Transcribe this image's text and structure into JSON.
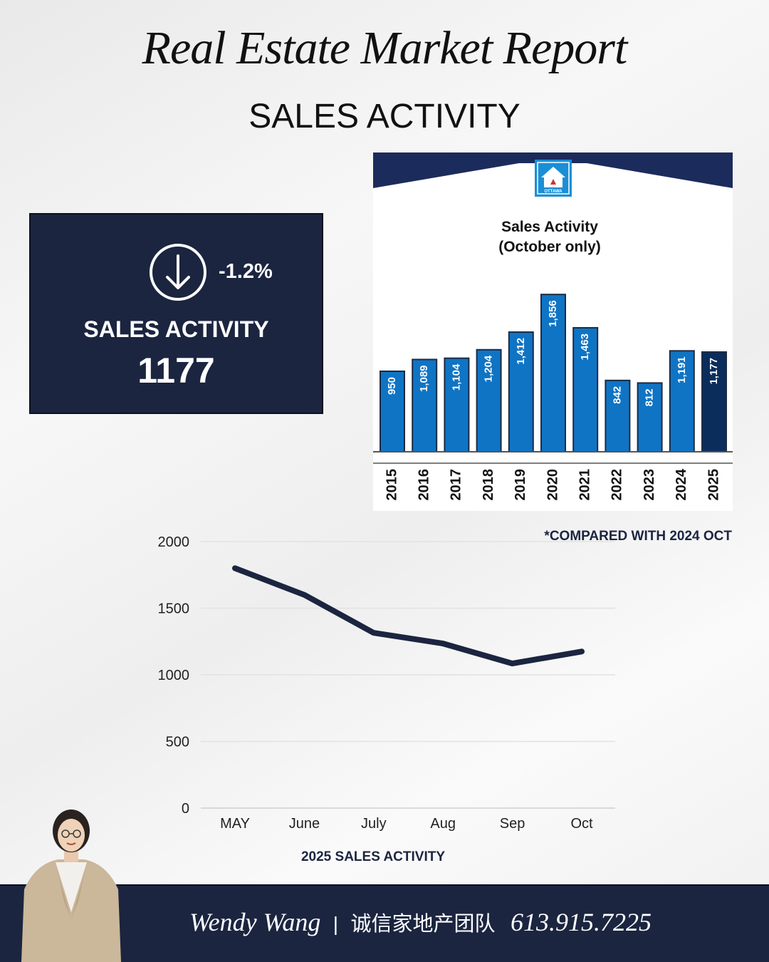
{
  "header": {
    "title": "Real Estate Market Report",
    "subtitle": "SALES ACTIVITY"
  },
  "kpi": {
    "direction_icon": "arrow-down-circle-icon",
    "change": "-1.2%",
    "label": "SALES ACTIVITY",
    "value": "1177"
  },
  "note": "*COMPARED WITH 2024 OCT",
  "footer": {
    "name": "Wendy Wang",
    "separator": "|",
    "team": "诚信家地产团队",
    "phone": "613.915.7225"
  },
  "colors": {
    "navy": "#1b2540",
    "bar_blue": "#0f74c4",
    "bar_highlight": "#0a2d5c",
    "logo_blue": "#1a8fd6"
  },
  "chart_data": [
    {
      "type": "bar",
      "title": "Sales Activity",
      "subtitle": "(October only)",
      "categories": [
        "2015",
        "2016",
        "2017",
        "2018",
        "2019",
        "2020",
        "2021",
        "2022",
        "2023",
        "2024",
        "2025"
      ],
      "values": [
        950,
        1089,
        1104,
        1204,
        1412,
        1856,
        1463,
        842,
        812,
        1191,
        1177
      ],
      "value_labels": [
        "950",
        "1,089",
        "1,104",
        "1,204",
        "1,412",
        "1,856",
        "1,463",
        "842",
        "812",
        "1,191",
        "1,177"
      ],
      "highlight": "2025",
      "ylim": [
        0,
        1900
      ],
      "logo_text": "OTTAWA"
    },
    {
      "type": "line",
      "categories": [
        "MAY",
        "June",
        "July",
        "Aug",
        "Sep",
        "Oct"
      ],
      "values": [
        1800,
        1600,
        1315,
        1235,
        1085,
        1175
      ],
      "yticks": [
        0,
        500,
        1000,
        1500,
        2000
      ],
      "ylim": [
        0,
        2000
      ],
      "xlabel": "2025 SALES ACTIVITY",
      "grid": true
    }
  ]
}
